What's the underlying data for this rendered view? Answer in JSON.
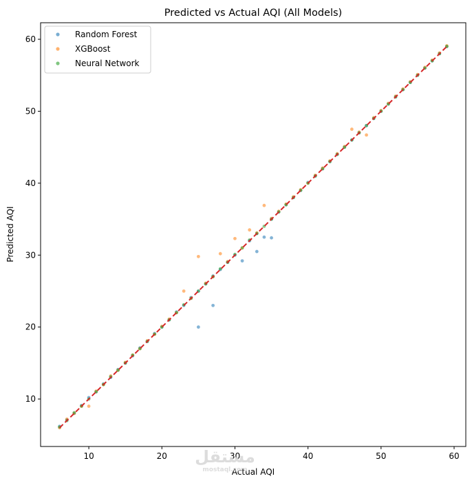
{
  "chart_data": {
    "type": "scatter",
    "title": "Predicted vs Actual AQI (All Models)",
    "xlabel": "Actual AQI",
    "ylabel": "Predicted AQI",
    "xlim": [
      3.4,
      61.6
    ],
    "ylim": [
      3.4,
      62.3
    ],
    "xticks": [
      10,
      20,
      30,
      40,
      50,
      60
    ],
    "yticks": [
      10,
      20,
      30,
      40,
      50,
      60
    ],
    "grid": false,
    "legend_position": "top-left",
    "series": [
      {
        "name": "Random Forest",
        "color": "#1f77b4",
        "x": [
          6,
          7,
          8,
          9,
          10,
          11,
          12,
          13,
          14,
          15,
          16,
          17,
          18,
          19,
          20,
          21,
          22,
          23,
          24,
          25,
          25,
          26,
          27,
          27,
          28,
          29,
          30,
          31,
          32,
          33,
          33,
          34,
          35,
          35,
          36,
          37,
          38,
          39,
          40,
          41,
          42,
          43,
          44,
          45,
          46,
          47,
          48,
          49,
          50,
          51,
          52,
          53,
          54,
          55,
          56,
          57,
          58,
          59
        ],
        "y": [
          6.2,
          7.1,
          8.0,
          9.1,
          10.2,
          11.0,
          12.1,
          13.0,
          14.1,
          15.0,
          16.0,
          17.1,
          18.0,
          19.1,
          20.0,
          21.0,
          22.1,
          23.0,
          24.1,
          20.0,
          25.0,
          26.0,
          23.0,
          27.1,
          28.0,
          29.0,
          30.0,
          29.2,
          32.0,
          30.5,
          33.0,
          32.5,
          32.4,
          35.0,
          36.0,
          37.0,
          38.0,
          39.0,
          40.1,
          41.0,
          42.0,
          43.0,
          44.0,
          45.0,
          46.0,
          47.0,
          48.0,
          49.0,
          50.0,
          51.0,
          52.0,
          53.0,
          54.0,
          55.0,
          56.0,
          57.0,
          58.0,
          59.0
        ]
      },
      {
        "name": "XGBoost",
        "color": "#ff7f0e",
        "x": [
          6,
          7,
          8,
          9,
          10,
          11,
          12,
          13,
          14,
          15,
          16,
          17,
          18,
          19,
          20,
          21,
          22,
          23,
          24,
          25,
          26,
          27,
          28,
          29,
          30,
          31,
          32,
          33,
          34,
          35,
          36,
          37,
          38,
          39,
          40,
          41,
          42,
          43,
          44,
          45,
          46,
          47,
          48,
          49,
          50,
          51,
          52,
          53,
          54,
          55,
          56,
          57,
          58,
          59
        ],
        "y": [
          6.0,
          7.2,
          8.0,
          9.0,
          9.0,
          11.1,
          12.0,
          13.2,
          14.0,
          15.1,
          16.1,
          17.0,
          18.1,
          19.0,
          20.1,
          21.1,
          22.0,
          25.0,
          24.0,
          29.8,
          26.1,
          27.0,
          30.2,
          29.1,
          32.3,
          31.0,
          33.5,
          33.1,
          36.9,
          35.1,
          36.1,
          37.1,
          38.1,
          39.1,
          40.0,
          41.1,
          42.1,
          43.1,
          44.1,
          45.1,
          47.5,
          47.1,
          46.7,
          49.1,
          50.1,
          51.1,
          52.1,
          53.1,
          54.1,
          55.1,
          56.1,
          57.1,
          58.1,
          59.1
        ]
      },
      {
        "name": "Neural Network",
        "color": "#2ca02c",
        "x": [
          6,
          7,
          8,
          9,
          10,
          11,
          12,
          13,
          14,
          15,
          16,
          17,
          18,
          19,
          20,
          21,
          22,
          23,
          24,
          25,
          26,
          27,
          28,
          29,
          30,
          31,
          32,
          33,
          34,
          35,
          36,
          37,
          38,
          39,
          40,
          41,
          42,
          43,
          44,
          45,
          46,
          47,
          48,
          49,
          50,
          51,
          52,
          53,
          54,
          55,
          56,
          57,
          58,
          59
        ],
        "y": [
          6.1,
          7.0,
          8.1,
          9.0,
          10.0,
          11.0,
          12.0,
          13.1,
          14.0,
          15.0,
          16.1,
          17.0,
          18.0,
          19.0,
          20.0,
          21.0,
          22.0,
          23.1,
          24.0,
          25.0,
          26.0,
          27.0,
          28.1,
          29.0,
          30.1,
          31.0,
          32.1,
          33.0,
          34.0,
          35.0,
          36.0,
          37.0,
          38.0,
          39.0,
          40.0,
          41.0,
          42.0,
          43.0,
          44.0,
          45.0,
          46.0,
          47.0,
          48.0,
          49.0,
          50.0,
          51.0,
          52.0,
          53.0,
          54.0,
          55.0,
          56.0,
          57.0,
          58.0,
          59.0
        ]
      }
    ],
    "reference_line": {
      "x": [
        6,
        59
      ],
      "y": [
        6,
        59
      ],
      "color": "#d62728"
    }
  },
  "watermark": {
    "logo_text": "مستقل",
    "sub_text": "mostaql.com"
  }
}
